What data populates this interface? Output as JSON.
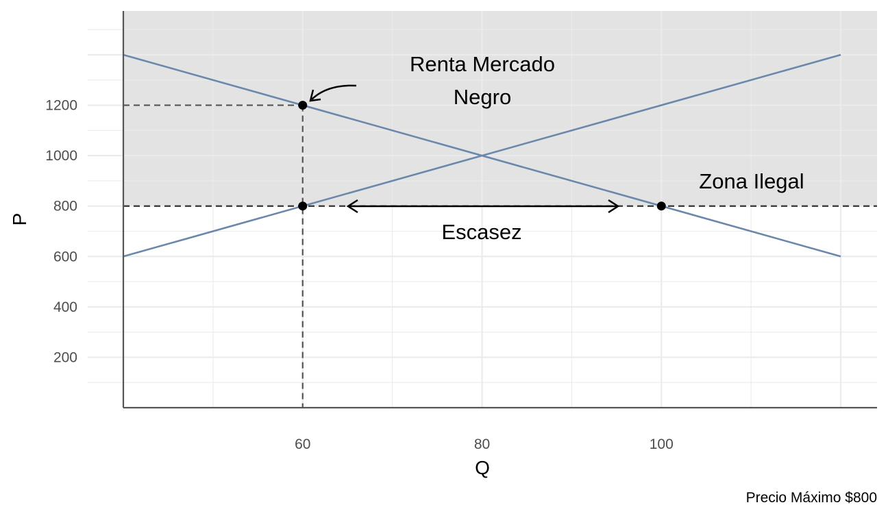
{
  "chart_data": {
    "type": "line",
    "xlabel": "Q",
    "ylabel": "P",
    "caption": "Precio Máximo $800",
    "xlim": [
      40,
      120
    ],
    "ylim": [
      0,
      1400
    ],
    "x_ticks": [
      60,
      80,
      100
    ],
    "y_ticks": [
      200,
      400,
      600,
      800,
      1000,
      1200
    ],
    "grid": true,
    "series": [
      {
        "role": "demand",
        "x": [
          40,
          120
        ],
        "y": [
          1400,
          600
        ]
      },
      {
        "role": "supply",
        "x": [
          40,
          120
        ],
        "y": [
          600,
          1400
        ]
      }
    ],
    "price_ceiling": 800,
    "shaded_region": {
      "y_from": 800,
      "y_to": 1575,
      "color": "#e3e3e3"
    },
    "points": [
      {
        "x": 60,
        "y": 1200
      },
      {
        "x": 60,
        "y": 800
      },
      {
        "x": 100,
        "y": 800
      }
    ],
    "annotations": {
      "renta_line1": "Renta Mercado",
      "renta_line2": "Negro",
      "zona": "Zona Ilegal",
      "escasez": "Escasez"
    },
    "colors": {
      "line": "#6b87ab",
      "points": "#000000",
      "shade": "#e3e3e3",
      "grid": "#ebebeb"
    }
  }
}
